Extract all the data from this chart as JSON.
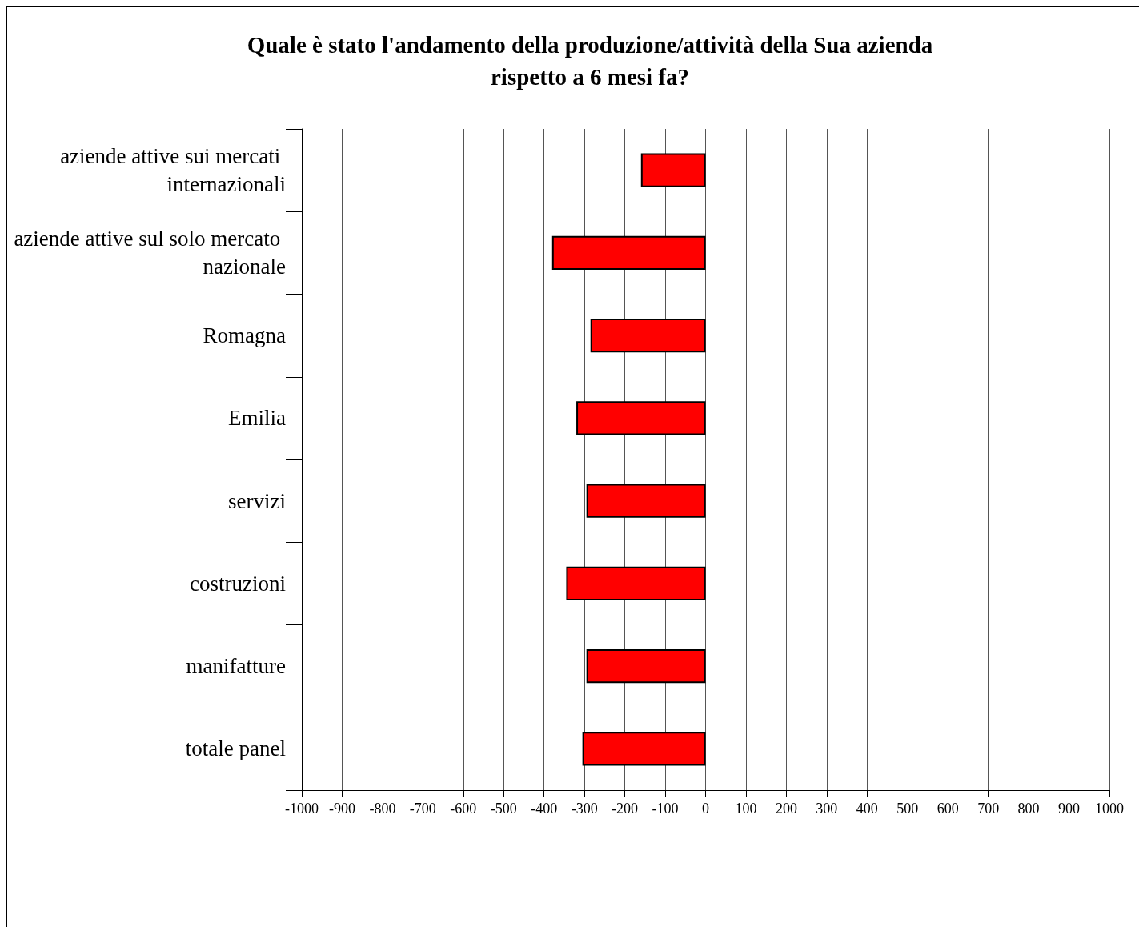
{
  "chart_data": {
    "type": "bar",
    "orientation": "horizontal",
    "title": "Quale è stato l'andamento della produzione/attività della Sua azienda rispetto a 6 mesi fa?",
    "categories": [
      "aziende attive sui mercati internazionali",
      "aziende attive sul solo mercato nazionale",
      "Romagna",
      "Emilia",
      "servizi",
      "costruzioni",
      "manifatture",
      "totale panel"
    ],
    "values": [
      -160,
      -380,
      -285,
      -320,
      -295,
      -345,
      -295,
      -305
    ],
    "color": "#ff0000",
    "xlim": [
      -1000,
      1000
    ],
    "xticks": [
      -1000,
      -900,
      -800,
      -700,
      -600,
      -500,
      -400,
      -300,
      -200,
      -100,
      0,
      100,
      200,
      300,
      400,
      500,
      600,
      700,
      800,
      900,
      1000
    ],
    "grid": "x"
  }
}
